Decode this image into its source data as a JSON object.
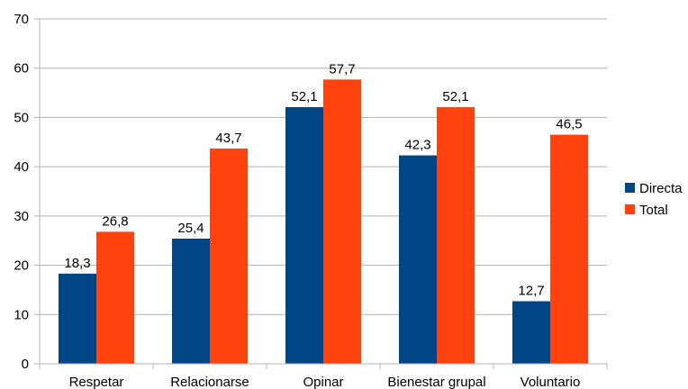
{
  "chart_data": {
    "type": "bar",
    "categories": [
      "Respetar",
      "Relacionarse",
      "Opinar",
      "Bienestar grupal",
      "Voluntario"
    ],
    "series": [
      {
        "name": "Directa",
        "values": [
          18.3,
          25.4,
          52.1,
          42.3,
          12.7
        ],
        "labels": [
          "18,3",
          "25,4",
          "52,1",
          "42,3",
          "12,7"
        ],
        "color": "#004586"
      },
      {
        "name": "Total",
        "values": [
          26.8,
          43.7,
          57.7,
          52.1,
          46.5
        ],
        "labels": [
          "26,8",
          "43,7",
          "57,7",
          "52,1",
          "46,5"
        ],
        "color": "#ff420e"
      }
    ],
    "title": "",
    "xlabel": "",
    "ylabel": "",
    "ylim": [
      0,
      70
    ],
    "yticks": [
      0,
      10,
      20,
      30,
      40,
      50,
      60,
      70
    ],
    "grid": true,
    "legend_position": "right",
    "colors": {
      "grid": "#b3b3b3",
      "axis": "#b3b3b3"
    }
  }
}
